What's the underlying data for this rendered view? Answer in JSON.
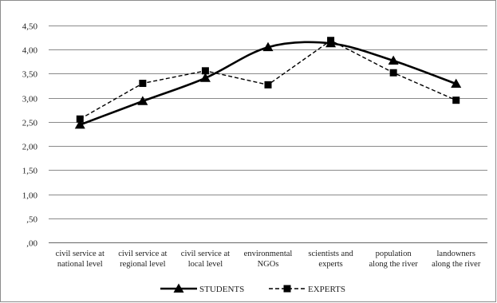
{
  "chart_data": {
    "type": "line",
    "title": "",
    "xlabel": "",
    "ylabel": "",
    "ylim": [
      0,
      4.5
    ],
    "yticks": [
      ",00",
      ",50",
      "1,00",
      "1,50",
      "2,00",
      "2,50",
      "3,00",
      "3,50",
      "4,00",
      "4,50"
    ],
    "ytick_values": [
      0,
      0.5,
      1.0,
      1.5,
      2.0,
      2.5,
      3.0,
      3.5,
      4.0,
      4.5
    ],
    "categories": [
      [
        "civil service at",
        "national level"
      ],
      [
        "civil service at",
        "regional level"
      ],
      [
        "civil service at",
        "local level"
      ],
      [
        "environmental",
        "NGOs"
      ],
      [
        "scientists and",
        "experts"
      ],
      [
        "population",
        "along the river"
      ],
      [
        "landowners",
        "along the river"
      ]
    ],
    "series": [
      {
        "name": "STUDENTS",
        "values": [
          2.44,
          2.93,
          3.41,
          4.05,
          4.13,
          3.77,
          3.29
        ],
        "marker": "triangle",
        "line": "solid",
        "color": "#000000"
      },
      {
        "name": "EXPERTS",
        "values": [
          2.56,
          3.3,
          3.56,
          3.27,
          4.19,
          3.52,
          2.95
        ],
        "marker": "square",
        "line": "dashed",
        "color": "#000000"
      }
    ],
    "grid": "horizontal",
    "legend_position": "bottom"
  }
}
